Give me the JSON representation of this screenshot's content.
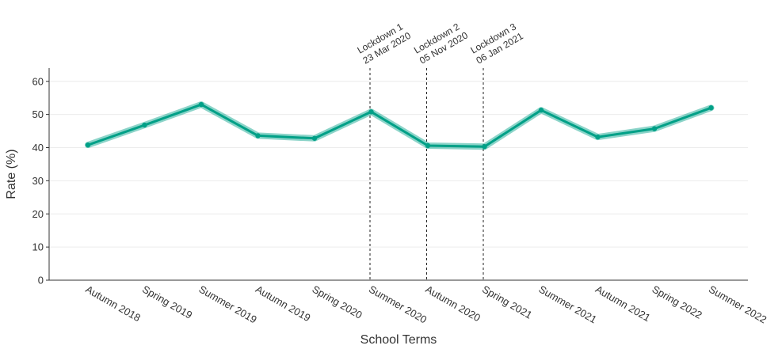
{
  "chart_data": {
    "type": "line",
    "xlabel": "School Terms",
    "ylabel": "Rate (%)",
    "ylim": [
      0,
      64
    ],
    "yticks": [
      0,
      10,
      20,
      30,
      40,
      50,
      60
    ],
    "grid": true,
    "categories": [
      "Autumn 2018",
      "Spring 2019",
      "Summer 2019",
      "Autumn 2019",
      "Spring 2020",
      "Summer 2020",
      "Autumn 2020",
      "Spring 2021",
      "Summer 2021",
      "Autumn 2021",
      "Spring 2022",
      "Summer 2022"
    ],
    "series": [
      {
        "values": [
          40.8,
          46.8,
          53.0,
          43.6,
          42.8,
          50.8,
          40.6,
          40.3,
          51.3,
          43.2,
          45.7,
          52.0
        ],
        "band": 0.5,
        "color": "#00a087"
      }
    ],
    "annotations": [
      {
        "after_index": 5,
        "line1": "Lockdown 1",
        "line2": "23 Mar 2020"
      },
      {
        "after_index": 6,
        "line1": "Lockdown 2",
        "line2": "05 Nov 2020"
      },
      {
        "after_index": 7,
        "line1": "Lockdown 3",
        "line2": "06 Jan 2021"
      }
    ]
  }
}
